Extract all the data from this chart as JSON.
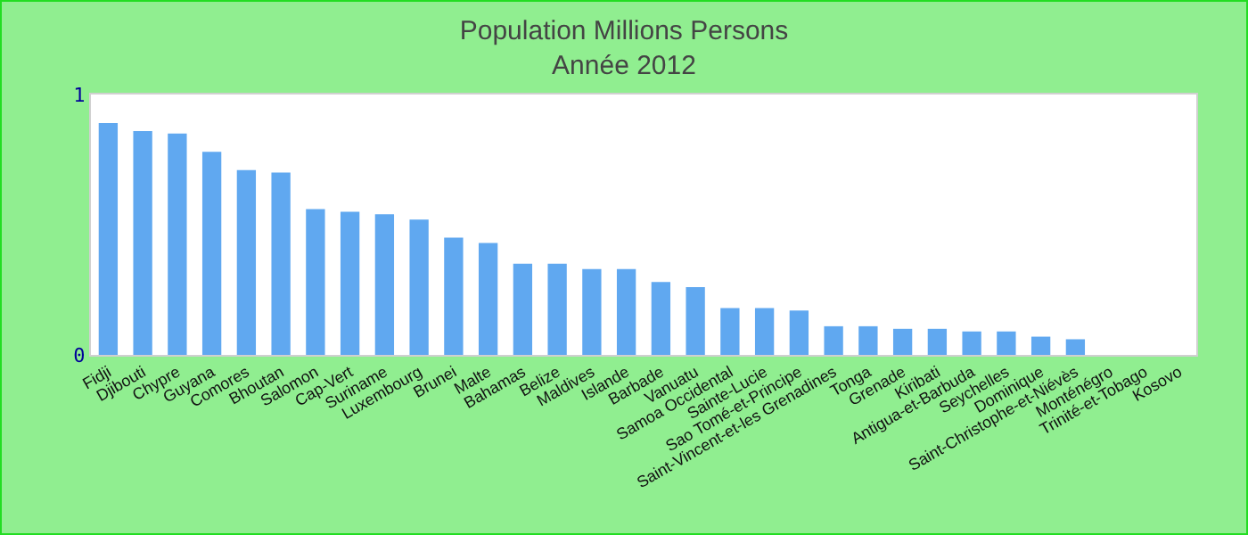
{
  "chart_data": {
    "type": "bar",
    "title": "Population Millions Persons",
    "subtitle": "Année 2012",
    "categories": [
      "Fidji",
      "Djibouti",
      "Chypre",
      "Guyana",
      "Comores",
      "Bhoutan",
      "Salomon",
      "Cap-Vert",
      "Suriname",
      "Luxembourg",
      "Brunei",
      "Malte",
      "Bahamas",
      "Belize",
      "Maldives",
      "Islande",
      "Barbade",
      "Vanuatu",
      "Samoa Occidental",
      "Sainte-Lucie",
      "Sao Tomé-et-Principe",
      "Saint-Vincent-et-les Grenadines",
      "Tonga",
      "Grenade",
      "Kiribati",
      "Antigua-et-Barbuda",
      "Seychelles",
      "Dominique",
      "Saint-Christophe-et-Niévès",
      "Monténégro",
      "Trinité-et-Tobago",
      "Kosovo"
    ],
    "values": [
      0.89,
      0.86,
      0.85,
      0.78,
      0.71,
      0.7,
      0.56,
      0.55,
      0.54,
      0.52,
      0.45,
      0.43,
      0.35,
      0.35,
      0.33,
      0.33,
      0.28,
      0.26,
      0.18,
      0.18,
      0.17,
      0.11,
      0.11,
      0.1,
      0.1,
      0.09,
      0.09,
      0.07,
      0.06,
      null,
      null,
      null
    ],
    "color": "#60a8f0",
    "ylim": [
      0,
      1
    ],
    "yticks": [
      0,
      1
    ],
    "grid": false,
    "legend": false
  }
}
